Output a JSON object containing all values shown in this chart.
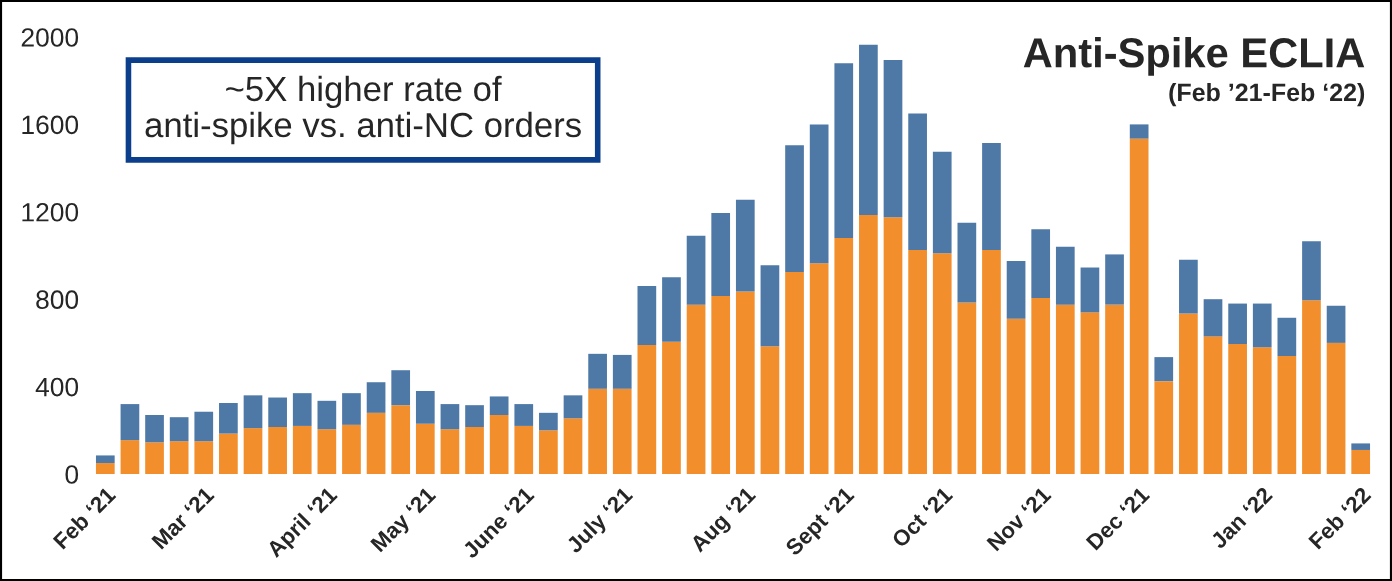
{
  "chart_data": {
    "type": "bar",
    "title": "Anti-Spike ECLIA",
    "subtitle": "(Feb ’21-Feb ‘22)",
    "annotations": [
      "~5X higher rate of\nanti-spike vs. anti-NC orders"
    ],
    "categories": [
      "Feb ‘21",
      null,
      null,
      null,
      "Mar ‘21",
      null,
      null,
      null,
      null,
      "April ‘21",
      null,
      null,
      null,
      "May ‘21",
      null,
      null,
      null,
      "June ‘21",
      null,
      null,
      null,
      "July ‘21",
      null,
      null,
      null,
      null,
      "Aug ‘21",
      null,
      null,
      null,
      "Sept ‘21",
      null,
      null,
      null,
      "Oct ‘21",
      null,
      null,
      null,
      "Nov ‘21",
      null,
      null,
      null,
      "Dec ‘21",
      null,
      null,
      null,
      null,
      "Jan ‘22",
      null,
      null,
      null,
      "Feb ‘22"
    ],
    "stacked": true,
    "series": [
      {
        "color": "#f28e2b",
        "values": [
          50,
          155,
          145,
          150,
          150,
          185,
          210,
          215,
          220,
          205,
          225,
          280,
          315,
          230,
          205,
          215,
          270,
          220,
          200,
          255,
          390,
          390,
          590,
          605,
          775,
          815,
          835,
          585,
          925,
          965,
          1080,
          1185,
          1175,
          1025,
          1010,
          785,
          1025,
          710,
          805,
          775,
          740,
          775,
          1535,
          425,
          735,
          630,
          595,
          580,
          540,
          795,
          600,
          110
        ]
      },
      {
        "color": "#4e79a7",
        "values": [
          35,
          165,
          125,
          110,
          135,
          140,
          150,
          135,
          150,
          130,
          145,
          140,
          160,
          150,
          115,
          100,
          85,
          100,
          80,
          105,
          160,
          155,
          270,
          295,
          315,
          380,
          420,
          370,
          580,
          635,
          800,
          780,
          720,
          625,
          465,
          365,
          490,
          265,
          315,
          265,
          205,
          230,
          65,
          110,
          245,
          170,
          185,
          200,
          175,
          270,
          170,
          30
        ]
      }
    ],
    "ylim": [
      0,
      2000
    ],
    "yticks": [
      0,
      400,
      800,
      1200,
      1600,
      2000
    ]
  }
}
